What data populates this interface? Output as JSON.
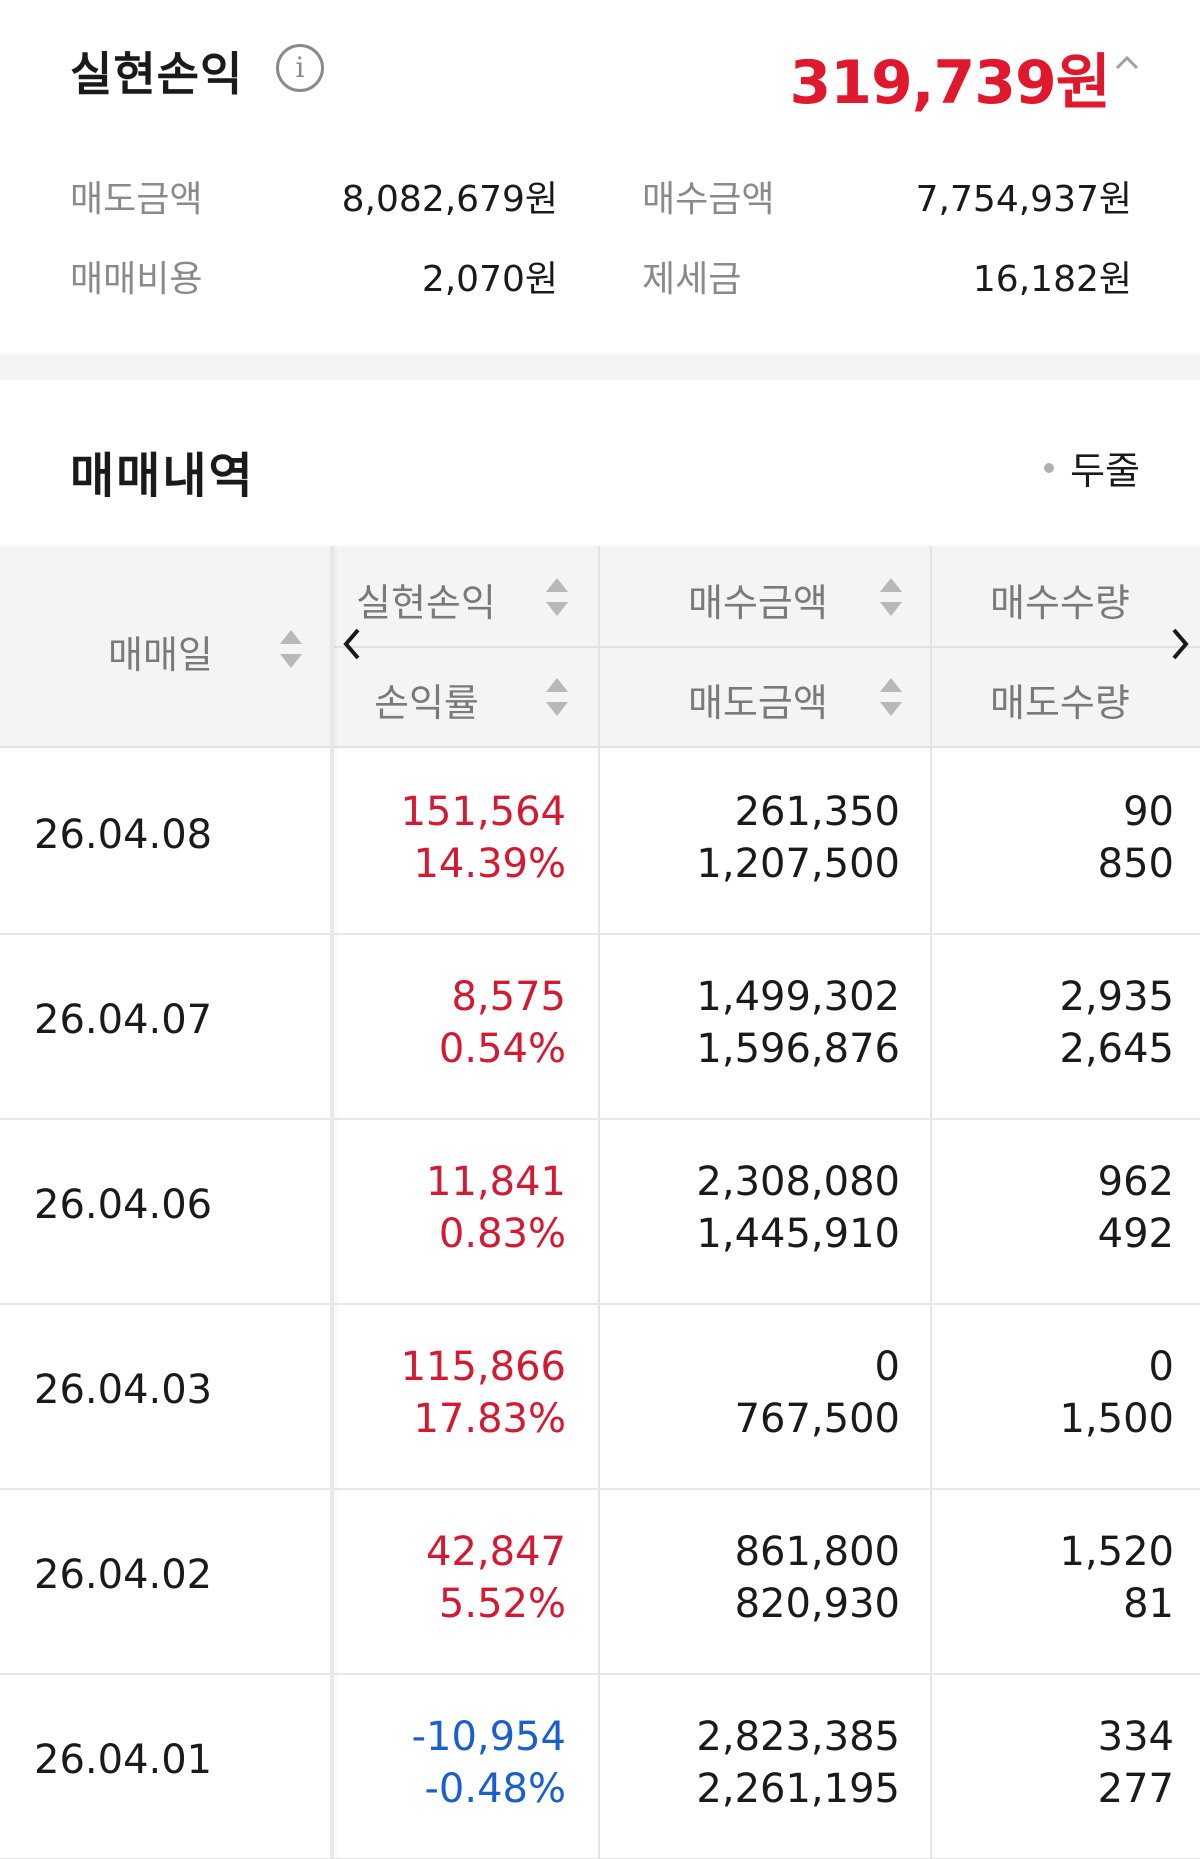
{
  "summary": {
    "title": "실현손익",
    "info_icon": "info-icon",
    "total": "319,739원",
    "total_color": "#e0182d",
    "sell_amount_label": "매도금액",
    "sell_amount": "8,082,679원",
    "buy_amount_label": "매수금액",
    "buy_amount": "7,754,937원",
    "fees_label": "매매비용",
    "fees": "2,070원",
    "taxes_label": "제세금",
    "taxes": "16,182원"
  },
  "history": {
    "title": "매매내역",
    "toggle_label": "두줄"
  },
  "table": {
    "headers": {
      "date": "매매일",
      "profit": "실현손익",
      "rate": "손익률",
      "buy_amount": "매수금액",
      "sell_amount": "매도금액",
      "buy_qty": "매수수량",
      "sell_qty": "매도수량"
    },
    "rows": [
      {
        "date": "26.04.08",
        "profit": "151,564",
        "rate": "14.39%",
        "buy_amount": "261,350",
        "sell_amount": "1,207,500",
        "buy_qty": "90",
        "sell_qty": "850",
        "sign": "positive"
      },
      {
        "date": "26.04.07",
        "profit": "8,575",
        "rate": "0.54%",
        "buy_amount": "1,499,302",
        "sell_amount": "1,596,876",
        "buy_qty": "2,935",
        "sell_qty": "2,645",
        "sign": "positive"
      },
      {
        "date": "26.04.06",
        "profit": "11,841",
        "rate": "0.83%",
        "buy_amount": "2,308,080",
        "sell_amount": "1,445,910",
        "buy_qty": "962",
        "sell_qty": "492",
        "sign": "positive"
      },
      {
        "date": "26.04.03",
        "profit": "115,866",
        "rate": "17.83%",
        "buy_amount": "0",
        "sell_amount": "767,500",
        "buy_qty": "0",
        "sell_qty": "1,500",
        "sign": "positive"
      },
      {
        "date": "26.04.02",
        "profit": "42,847",
        "rate": "5.52%",
        "buy_amount": "861,800",
        "sell_amount": "820,930",
        "buy_qty": "1,520",
        "sell_qty": "81",
        "sign": "positive"
      },
      {
        "date": "26.04.01",
        "profit": "-10,954",
        "rate": "-0.48%",
        "buy_amount": "2,823,385",
        "sell_amount": "2,261,195",
        "buy_qty": "334",
        "sell_qty": "277",
        "sign": "negative"
      }
    ]
  },
  "colors": {
    "positive": "#d31a33",
    "negative": "#1b5fcc",
    "header_bg": "#f4f4f4"
  }
}
